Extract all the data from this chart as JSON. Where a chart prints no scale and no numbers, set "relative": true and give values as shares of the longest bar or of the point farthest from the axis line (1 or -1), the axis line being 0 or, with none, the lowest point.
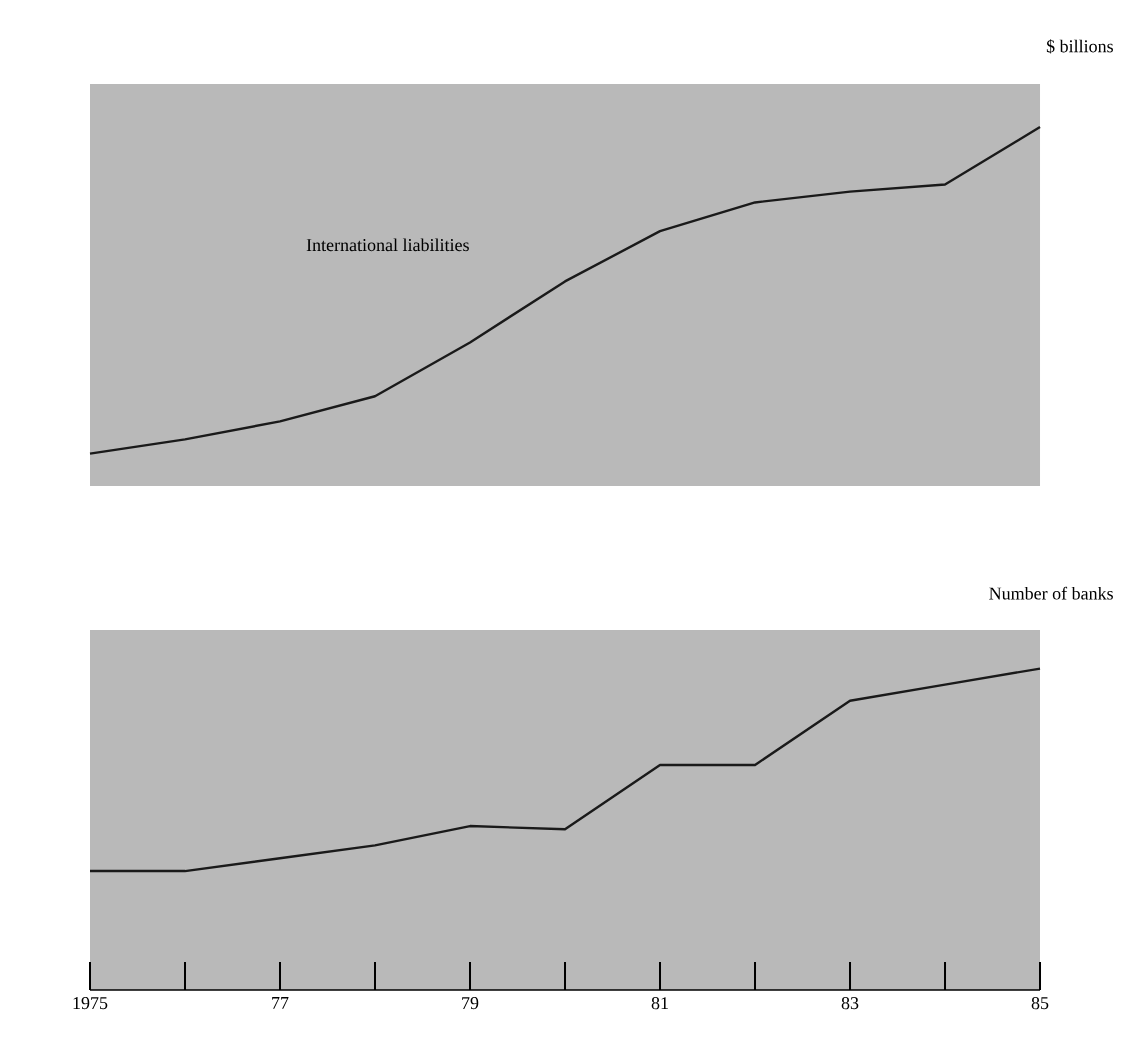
{
  "chart_data": [
    {
      "type": "line",
      "ylabel": "$ billions",
      "relative": true,
      "x": [
        1975,
        1976,
        1977,
        1978,
        1979,
        1980,
        1981,
        1982,
        1983,
        1984,
        1985
      ],
      "xlim": [
        1975,
        1985
      ],
      "tick_labels": false,
      "series": [
        {
          "name": "International liabilities",
          "color": "#1a1a1a",
          "values": [
            0.09,
            0.13,
            0.18,
            0.25,
            0.4,
            0.57,
            0.71,
            0.79,
            0.82,
            0.84,
            1
          ]
        }
      ]
    },
    {
      "type": "line",
      "ylabel": "Number of banks",
      "relative": true,
      "x": [
        1975,
        1976,
        1977,
        1978,
        1979,
        1980,
        1981,
        1982,
        1983,
        1984,
        1985
      ],
      "xlim": [
        1975,
        1985
      ],
      "tick_labels": "x",
      "xticks": [
        {
          "value": 1975,
          "label": "1975"
        },
        {
          "value": 1976,
          "label": null
        },
        {
          "value": 1977,
          "label": "77"
        },
        {
          "value": 1978,
          "label": null
        },
        {
          "value": 1979,
          "label": "79"
        },
        {
          "value": 1980,
          "label": null
        },
        {
          "value": 1981,
          "label": "81"
        },
        {
          "value": 1982,
          "label": null
        },
        {
          "value": 1983,
          "label": "83"
        },
        {
          "value": 1984,
          "label": null
        },
        {
          "value": 1985,
          "label": "85"
        }
      ],
      "series": [
        {
          "color": "#1a1a1a",
          "values": [
            0.37,
            0.37,
            0.41,
            0.45,
            0.51,
            0.5,
            0.7,
            0.7,
            0.9,
            0.95,
            1
          ]
        }
      ]
    }
  ]
}
